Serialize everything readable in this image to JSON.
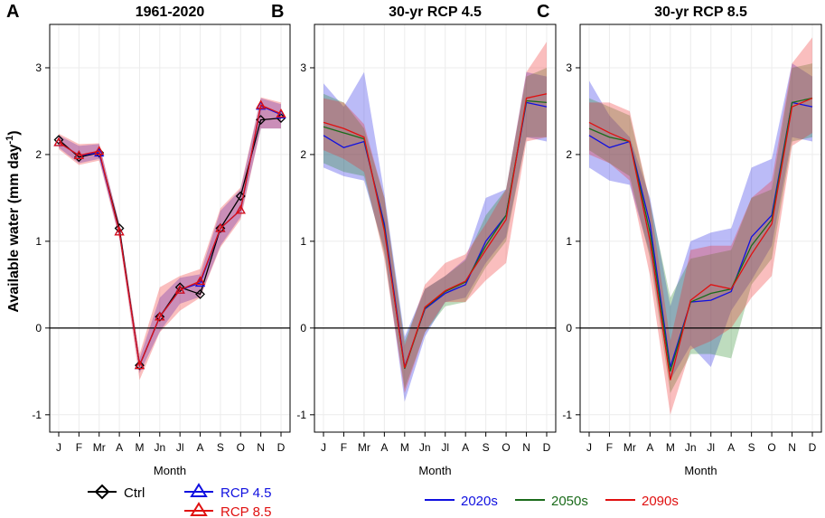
{
  "figure": {
    "ylabel_main": "Available water (mm day",
    "ylabel_sup": "-1",
    "ylabel_close": ")"
  },
  "legend": {
    "ctrl": "Ctrl",
    "rcp45": "RCP 4.5",
    "rcp85": "RCP 8.5",
    "d2020": "2020s",
    "d2050": "2050s",
    "d2090": "2090s"
  },
  "colors": {
    "ctrl": "#000000",
    "rcp45": "#1010e0",
    "rcp85": "#e01010",
    "d2020": "#1010e0",
    "d2050": "#1a6b1a",
    "d2090": "#e01010"
  },
  "chart_data": [
    {
      "letter": "A",
      "title": "1961-2020",
      "type": "line",
      "xlabel": "Month",
      "categories": [
        "J",
        "F",
        "Mr",
        "A",
        "M",
        "Jn",
        "Jl",
        "A",
        "S",
        "O",
        "N",
        "D"
      ],
      "ylim": [
        -1.2,
        3.5
      ],
      "yticks": [
        -1,
        0,
        1,
        2,
        3
      ],
      "series": [
        {
          "name": "Ctrl",
          "color": "#000000",
          "marker": "diamond",
          "values": [
            2.17,
            1.97,
            2.02,
            1.15,
            -0.43,
            0.13,
            0.47,
            0.39,
            1.15,
            1.52,
            2.4,
            2.42
          ]
        },
        {
          "name": "RCP 4.5",
          "color": "#1010e0",
          "marker": "triangle",
          "values": [
            2.14,
            1.99,
            2.02,
            1.11,
            -0.43,
            0.13,
            0.44,
            0.52,
            1.15,
            1.36,
            2.56,
            2.46
          ]
        },
        {
          "name": "RCP 8.5",
          "color": "#e01010",
          "marker": "triangle",
          "values": [
            2.14,
            1.99,
            2.04,
            1.11,
            -0.43,
            0.13,
            0.44,
            0.54,
            1.15,
            1.36,
            2.57,
            2.47
          ]
        }
      ],
      "bands": [
        {
          "name": "RCP 4.5",
          "fill": "rgba(30,30,230,0.30)",
          "lower": [
            2.08,
            1.9,
            1.95,
            1.05,
            -0.52,
            -0.04,
            0.28,
            0.36,
            0.95,
            1.28,
            2.3,
            2.3
          ],
          "upper": [
            2.22,
            2.1,
            2.12,
            1.2,
            -0.35,
            0.35,
            0.58,
            0.62,
            1.35,
            1.6,
            2.65,
            2.58
          ]
        },
        {
          "name": "RCP 8.5",
          "fill": "rgba(240,40,40,0.30)",
          "lower": [
            2.06,
            1.88,
            1.93,
            1.03,
            -0.6,
            -0.05,
            0.2,
            0.35,
            0.93,
            1.25,
            2.3,
            2.3
          ],
          "upper": [
            2.24,
            2.12,
            2.13,
            1.2,
            -0.3,
            0.47,
            0.6,
            0.68,
            1.38,
            1.62,
            2.66,
            2.6
          ]
        }
      ]
    },
    {
      "letter": "B",
      "title": "30-yr RCP 4.5",
      "type": "line",
      "xlabel": "Month",
      "categories": [
        "J",
        "F",
        "Mr",
        "A",
        "M",
        "Jn",
        "Jl",
        "A",
        "S",
        "O",
        "N",
        "D"
      ],
      "ylim": [
        -1.2,
        3.5
      ],
      "yticks": [
        -1,
        0,
        1,
        2,
        3
      ],
      "series": [
        {
          "name": "2020s",
          "color": "#1010e0",
          "values": [
            2.22,
            2.08,
            2.15,
            1.2,
            -0.45,
            0.22,
            0.4,
            0.5,
            1.0,
            1.3,
            2.6,
            2.55
          ]
        },
        {
          "name": "2050s",
          "color": "#1a6b1a",
          "values": [
            2.32,
            2.25,
            2.18,
            1.15,
            -0.47,
            0.23,
            0.42,
            0.53,
            0.95,
            1.3,
            2.62,
            2.6
          ]
        },
        {
          "name": "2090s",
          "color": "#e01010",
          "values": [
            2.37,
            2.3,
            2.2,
            1.12,
            -0.46,
            0.24,
            0.43,
            0.54,
            0.9,
            1.25,
            2.65,
            2.7
          ]
        }
      ],
      "bands": [
        {
          "name": "2020s",
          "fill": "rgba(30,30,230,0.30)",
          "lower": [
            1.85,
            1.75,
            1.7,
            0.9,
            -0.85,
            -0.1,
            0.3,
            0.35,
            0.75,
            1.05,
            2.2,
            2.15
          ],
          "upper": [
            2.82,
            2.55,
            2.95,
            1.55,
            -0.1,
            0.45,
            0.6,
            0.8,
            1.5,
            1.6,
            2.95,
            2.9
          ]
        },
        {
          "name": "2050s",
          "fill": "rgba(40,140,40,0.30)",
          "lower": [
            1.9,
            1.8,
            1.75,
            0.85,
            -0.7,
            -0.05,
            0.25,
            0.3,
            0.7,
            1.0,
            2.2,
            2.2
          ],
          "upper": [
            2.7,
            2.6,
            2.3,
            1.5,
            -0.15,
            0.45,
            0.6,
            0.78,
            1.3,
            1.6,
            2.9,
            3.0
          ]
        },
        {
          "name": "2090s",
          "fill": "rgba(240,40,40,0.30)",
          "lower": [
            2.05,
            1.95,
            1.8,
            0.8,
            -0.75,
            -0.05,
            0.3,
            0.3,
            0.55,
            0.75,
            2.15,
            2.2
          ],
          "upper": [
            2.65,
            2.6,
            2.35,
            1.5,
            -0.2,
            0.5,
            0.75,
            0.85,
            1.2,
            1.6,
            2.95,
            3.3
          ]
        }
      ]
    },
    {
      "letter": "C",
      "title": "30-yr RCP 8.5",
      "type": "line",
      "xlabel": "Month",
      "categories": [
        "J",
        "F",
        "Mr",
        "A",
        "M",
        "Jn",
        "Jl",
        "A",
        "S",
        "O",
        "N",
        "D"
      ],
      "ylim": [
        -1.2,
        3.5
      ],
      "yticks": [
        -1,
        0,
        1,
        2,
        3
      ],
      "series": [
        {
          "name": "2020s",
          "color": "#1010e0",
          "values": [
            2.22,
            2.08,
            2.15,
            1.2,
            -0.45,
            0.3,
            0.32,
            0.42,
            1.05,
            1.3,
            2.6,
            2.55
          ]
        },
        {
          "name": "2050s",
          "color": "#1a6b1a",
          "values": [
            2.3,
            2.2,
            2.15,
            1.1,
            -0.5,
            0.3,
            0.4,
            0.45,
            0.95,
            1.25,
            2.6,
            2.65
          ]
        },
        {
          "name": "2090s",
          "color": "#e01010",
          "values": [
            2.37,
            2.25,
            2.15,
            1.0,
            -0.6,
            0.32,
            0.5,
            0.45,
            0.85,
            1.2,
            2.55,
            2.65
          ]
        }
      ],
      "bands": [
        {
          "name": "2020s",
          "fill": "rgba(30,30,230,0.30)",
          "lower": [
            1.85,
            1.7,
            1.65,
            0.85,
            -0.6,
            -0.2,
            -0.45,
            0.2,
            0.55,
            0.95,
            2.2,
            2.15
          ],
          "upper": [
            2.85,
            2.45,
            2.2,
            1.5,
            0.25,
            1.0,
            1.1,
            1.15,
            1.85,
            1.95,
            3.05,
            2.9
          ]
        },
        {
          "name": "2050s",
          "fill": "rgba(40,140,40,0.30)",
          "lower": [
            2.05,
            1.9,
            1.75,
            0.8,
            -0.75,
            -0.3,
            -0.3,
            -0.35,
            0.5,
            0.8,
            2.15,
            2.2
          ],
          "upper": [
            2.65,
            2.55,
            2.45,
            1.45,
            0.35,
            0.8,
            0.85,
            0.9,
            1.5,
            1.6,
            3.0,
            3.05
          ]
        },
        {
          "name": "2090s",
          "fill": "rgba(240,40,40,0.30)",
          "lower": [
            2.0,
            1.9,
            1.7,
            0.6,
            -1.0,
            -0.25,
            -0.15,
            0.0,
            0.35,
            0.6,
            2.1,
            2.25
          ],
          "upper": [
            2.6,
            2.6,
            2.5,
            1.45,
            -0.15,
            0.9,
            0.95,
            0.95,
            1.5,
            1.7,
            3.05,
            3.35
          ]
        }
      ]
    }
  ]
}
